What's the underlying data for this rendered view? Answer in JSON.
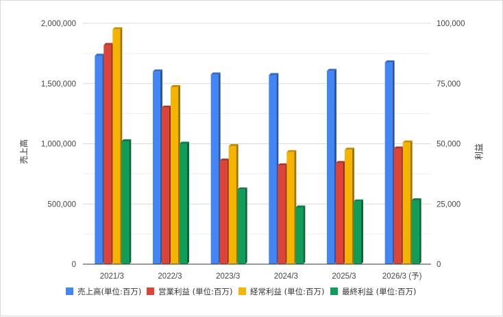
{
  "chart_data": {
    "type": "bar",
    "categories": [
      "2021/3",
      "2022/3",
      "2023/3",
      "2024/3",
      "2025/3",
      "2026/3 (予)"
    ],
    "left_axis": {
      "label": "売上高",
      "ylim": [
        0,
        2000000
      ],
      "ticks": [
        "0",
        "500,000",
        "1,000,000",
        "1,500,000",
        "2,000,000"
      ]
    },
    "right_axis": {
      "label": "利益",
      "ylim": [
        0,
        100000
      ],
      "ticks": [
        "0",
        "25,000",
        "50,000",
        "75,000",
        "100,000"
      ]
    },
    "grid": true,
    "legend_position": "bottom",
    "series": [
      {
        "name": "売上高(単位:百万)",
        "axis": "left",
        "color": "#4285f4",
        "values": [
          1730000,
          1600000,
          1575000,
          1570000,
          1605000,
          1675000
        ]
      },
      {
        "name": "営業利益 (単位:百万)",
        "axis": "right",
        "color": "#db4437",
        "values": [
          91000,
          65000,
          43000,
          41000,
          42000,
          48000
        ]
      },
      {
        "name": "経常利益 (単位:百万)",
        "axis": "right",
        "color": "#f4b400",
        "values": [
          97500,
          73500,
          49000,
          46500,
          47500,
          50500
        ]
      },
      {
        "name": "最終利益 (単位:百万)",
        "axis": "right",
        "color": "#0f9d58",
        "values": [
          51000,
          50000,
          31000,
          23500,
          26000,
          26500
        ]
      }
    ]
  }
}
